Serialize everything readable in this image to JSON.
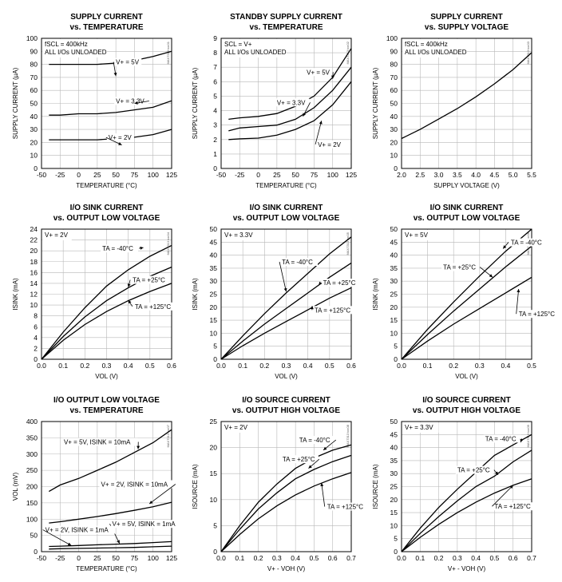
{
  "chart_data": [
    {
      "type": "line",
      "title": "SUPPLY CURRENT",
      "subtitle": "vs. TEMPERATURE",
      "xlabel": "TEMPERATURE (°C)",
      "ylabel": "SUPPLY CURRENT (µA)",
      "xlim": [
        -50,
        125
      ],
      "ylim": [
        0,
        100
      ],
      "xticks": [
        -50,
        -25,
        0,
        25,
        50,
        75,
        100,
        125
      ],
      "yticks": [
        0,
        10,
        20,
        30,
        40,
        50,
        60,
        70,
        80,
        90,
        100
      ],
      "grid": true,
      "notes": [
        "fSCL = 400kHz",
        "ALL I/Os UNLOADED"
      ],
      "mark": "MAX7313 toc01",
      "series": [
        {
          "name": "V+ = 5V",
          "x": [
            -40,
            -25,
            0,
            25,
            50,
            75,
            100,
            125
          ],
          "y": [
            80,
            80,
            80,
            80,
            81,
            83,
            86,
            90
          ]
        },
        {
          "name": "V+ = 3.3V",
          "x": [
            -40,
            -25,
            0,
            25,
            50,
            75,
            100,
            125
          ],
          "y": [
            41,
            41,
            42,
            42,
            43,
            45,
            47,
            52
          ]
        },
        {
          "name": "V+ = 2V",
          "x": [
            -40,
            -25,
            0,
            25,
            50,
            75,
            100,
            125
          ],
          "y": [
            22,
            22,
            22,
            22,
            23,
            24,
            26,
            30
          ]
        }
      ],
      "annotations": [
        {
          "text": "V+ = 5V",
          "x": 50,
          "y": 71,
          "tx": 50,
          "ty": 80
        },
        {
          "text": "V+ = 3.3V",
          "x": 75,
          "y": 50,
          "tx": 50,
          "ty": 50
        },
        {
          "text": "V+ = 2V",
          "x": 58,
          "y": 18,
          "tx": 40,
          "ty": 22
        }
      ]
    },
    {
      "type": "line",
      "title": "STANDBY SUPPLY CURRENT",
      "subtitle": "vs. TEMPERATURE",
      "xlabel": "TEMPERATURE (°C)",
      "ylabel": "SUPPLY CURRENT (µA)",
      "xlim": [
        -50,
        125
      ],
      "ylim": [
        0,
        9
      ],
      "xticks": [
        -50,
        -25,
        0,
        25,
        50,
        75,
        100,
        125
      ],
      "yticks": [
        0,
        1,
        2,
        3,
        4,
        5,
        6,
        7,
        8,
        9
      ],
      "grid": true,
      "notes": [
        "SCL = V+",
        "ALL I/Os UNLOADED"
      ],
      "mark": "MAX7313 toc02",
      "series": [
        {
          "name": "V+ = 5V",
          "x": [
            -40,
            -25,
            0,
            25,
            50,
            75,
            100,
            125
          ],
          "y": [
            3.4,
            3.5,
            3.6,
            3.8,
            4.3,
            5.0,
            6.3,
            8.3
          ]
        },
        {
          "name": "V+ = 3.3V",
          "x": [
            -40,
            -25,
            0,
            25,
            50,
            75,
            100,
            125
          ],
          "y": [
            2.6,
            2.8,
            2.9,
            3.0,
            3.4,
            4.2,
            5.4,
            7.0
          ]
        },
        {
          "name": "V+ = 2V",
          "x": [
            -40,
            -25,
            0,
            25,
            50,
            75,
            100,
            125
          ],
          "y": [
            2.0,
            2.05,
            2.1,
            2.3,
            2.7,
            3.3,
            4.4,
            6.0
          ]
        }
      ],
      "annotations": [
        {
          "text": "V+ = 5V",
          "x": 100,
          "y": 6.2,
          "tx": 65,
          "ty": 6.5
        },
        {
          "text": "V+ = 3.3V",
          "x": 60,
          "y": 3.6,
          "tx": 25,
          "ty": 4.4
        },
        {
          "text": "V+ = 2V",
          "x": 85,
          "y": 3.3,
          "tx": 80,
          "ty": 1.5
        }
      ]
    },
    {
      "type": "line",
      "title": "SUPPLY CURRENT",
      "subtitle": "vs. SUPPLY VOLTAGE",
      "xlabel": "SUPPLY VOLTAGE (V)",
      "ylabel": "SUPPLY CURRENT (µA)",
      "xlim": [
        2.0,
        5.5
      ],
      "ylim": [
        0,
        100
      ],
      "xticks": [
        2.0,
        2.5,
        3.0,
        3.5,
        4.0,
        4.5,
        5.0,
        5.5
      ],
      "yticks": [
        0,
        10,
        20,
        30,
        40,
        50,
        60,
        70,
        80,
        90,
        100
      ],
      "grid": true,
      "notes": [
        "fSCL = 400kHz",
        "ALL I/Os UNLOADED"
      ],
      "mark": "MAX7313 toc03",
      "series": [
        {
          "name": "",
          "x": [
            2.0,
            2.5,
            3.0,
            3.5,
            4.0,
            4.5,
            5.0,
            5.5
          ],
          "y": [
            23,
            30,
            38,
            46,
            55,
            65,
            76,
            89
          ]
        }
      ],
      "annotations": []
    },
    {
      "type": "line",
      "title": "I/O SINK CURRENT",
      "subtitle": "vs. OUTPUT LOW VOLTAGE",
      "xlabel": "VOL (V)",
      "ylabel": "ISINK (mA)",
      "xlim": [
        0,
        0.6
      ],
      "ylim": [
        0,
        24
      ],
      "xticks": [
        0,
        0.1,
        0.2,
        0.3,
        0.4,
        0.5,
        0.6
      ],
      "yticks": [
        0,
        2,
        4,
        6,
        8,
        10,
        12,
        14,
        16,
        18,
        20,
        22,
        24
      ],
      "grid": true,
      "notes": [
        "V+ = 2V"
      ],
      "mark": "MAX7313 toc04",
      "series": [
        {
          "name": "TA = -40°C",
          "x": [
            0,
            0.1,
            0.2,
            0.3,
            0.4,
            0.5,
            0.6
          ],
          "y": [
            0,
            5,
            9.5,
            13.5,
            16.5,
            19.0,
            21.0
          ]
        },
        {
          "name": "TA = +25°C",
          "x": [
            0,
            0.1,
            0.2,
            0.3,
            0.4,
            0.5,
            0.6
          ],
          "y": [
            0,
            4.2,
            7.8,
            10.8,
            13.2,
            15.3,
            17.0
          ]
        },
        {
          "name": "TA = +125°C",
          "x": [
            0,
            0.1,
            0.2,
            0.3,
            0.4,
            0.5,
            0.6
          ],
          "y": [
            0,
            3.5,
            6.4,
            8.8,
            10.8,
            12.5,
            14.0
          ]
        }
      ],
      "annotations": [
        {
          "text": "TA = -40°C",
          "x": 0.47,
          "y": 20.6,
          "tx": 0.28,
          "ty": 20.0
        },
        {
          "text": "TA = +25°C",
          "x": 0.4,
          "y": 13.3,
          "tx": 0.42,
          "ty": 14.2
        },
        {
          "text": "TA = +125°C",
          "x": 0.4,
          "y": 10.9,
          "tx": 0.43,
          "ty": 9.3
        }
      ]
    },
    {
      "type": "line",
      "title": "I/O SINK CURRENT",
      "subtitle": "vs. OUTPUT LOW VOLTAGE",
      "xlabel": "VOL (V)",
      "ylabel": "ISINK (mA)",
      "xlim": [
        0,
        0.6
      ],
      "ylim": [
        0,
        50
      ],
      "xticks": [
        0,
        0.1,
        0.2,
        0.3,
        0.4,
        0.5,
        0.6
      ],
      "yticks": [
        0,
        5,
        10,
        15,
        20,
        25,
        30,
        35,
        40,
        45,
        50
      ],
      "grid": true,
      "notes": [
        "V+ = 3.3V"
      ],
      "mark": "MAX7313 toc05",
      "series": [
        {
          "name": "TA = -40°C",
          "x": [
            0,
            0.1,
            0.2,
            0.3,
            0.4,
            0.5,
            0.6
          ],
          "y": [
            0,
            9,
            17.5,
            25.5,
            33,
            40.5,
            47
          ]
        },
        {
          "name": "TA = +25°C",
          "x": [
            0,
            0.1,
            0.2,
            0.3,
            0.4,
            0.5,
            0.6
          ],
          "y": [
            0,
            7,
            13.5,
            19.5,
            25.5,
            31.5,
            37
          ]
        },
        {
          "name": "TA = +125°C",
          "x": [
            0,
            0.1,
            0.2,
            0.3,
            0.4,
            0.5,
            0.6
          ],
          "y": [
            0,
            5.2,
            10,
            14.5,
            19,
            23.5,
            27.5
          ]
        }
      ],
      "annotations": [
        {
          "text": "TA = -40°C",
          "x": 0.3,
          "y": 26,
          "tx": 0.28,
          "ty": 36.5
        },
        {
          "text": "TA = +25°C",
          "x": 0.45,
          "y": 28.5,
          "tx": 0.47,
          "ty": 28.5
        },
        {
          "text": "TA = +125°C",
          "x": 0.42,
          "y": 20.5,
          "tx": 0.43,
          "ty": 18.0
        }
      ]
    },
    {
      "type": "line",
      "title": "I/O SINK CURRENT",
      "subtitle": "vs. OUTPUT LOW VOLTAGE",
      "xlabel": "VOL (V)",
      "ylabel": "ISINK (mA)",
      "xlim": [
        0,
        0.5
      ],
      "ylim": [
        0,
        50
      ],
      "xticks": [
        0,
        0.1,
        0.2,
        0.3,
        0.4,
        0.5
      ],
      "yticks": [
        0,
        5,
        10,
        15,
        20,
        25,
        30,
        35,
        40,
        45,
        50
      ],
      "grid": true,
      "notes": [
        "V+ = 5V"
      ],
      "mark": "MAX7313 toc06",
      "series": [
        {
          "name": "TA = -40°C",
          "x": [
            0,
            0.1,
            0.2,
            0.3,
            0.4,
            0.5
          ],
          "y": [
            0,
            11.5,
            22,
            32,
            41.5,
            50
          ]
        },
        {
          "name": "TA = +25°C",
          "x": [
            0,
            0.1,
            0.2,
            0.3,
            0.4,
            0.5
          ],
          "y": [
            0,
            9.5,
            18.5,
            27,
            35.5,
            43.5
          ]
        },
        {
          "name": "TA = +125°C",
          "x": [
            0,
            0.1,
            0.2,
            0.3,
            0.4,
            0.5
          ],
          "y": [
            0,
            7,
            13.5,
            19.5,
            25.5,
            31.5
          ]
        }
      ],
      "annotations": [
        {
          "text": "TA = -40°C",
          "x": 0.39,
          "y": 42.5,
          "tx": 0.42,
          "ty": 44.0
        },
        {
          "text": "TA = +25°C",
          "x": 0.35,
          "y": 31.5,
          "tx": 0.16,
          "ty": 34.5
        },
        {
          "text": "TA = +125°C",
          "x": 0.45,
          "y": 27,
          "tx": 0.45,
          "ty": 16.5
        }
      ]
    },
    {
      "type": "line",
      "title": "I/O OUTPUT LOW VOLTAGE",
      "subtitle": "vs. TEMPERATURE",
      "xlabel": "TEMPERATURE (°C)",
      "ylabel": "VOL (mV)",
      "xlim": [
        -50,
        125
      ],
      "ylim": [
        0,
        400
      ],
      "xticks": [
        -50,
        -25,
        0,
        25,
        50,
        75,
        100,
        125
      ],
      "yticks": [
        0,
        50,
        100,
        150,
        200,
        250,
        300,
        350,
        400
      ],
      "grid": true,
      "notes": [],
      "mark": "MAX7313 toc07",
      "series": [
        {
          "name": "V+ = 5V, ISINK = 10mA",
          "x": [
            -40,
            -25,
            0,
            25,
            50,
            75,
            100,
            125
          ],
          "y": [
            185,
            205,
            225,
            250,
            275,
            305,
            335,
            375
          ]
        },
        {
          "name": "V+ = 2V, ISINK = 10mA",
          "x": [
            -40,
            -25,
            0,
            25,
            50,
            75,
            100,
            125
          ],
          "y": [
            88,
            92,
            100,
            108,
            117,
            127,
            138,
            152
          ]
        },
        {
          "name": "V+ = 5V, ISINK = 1mA",
          "x": [
            -40,
            -25,
            0,
            25,
            50,
            75,
            100,
            125
          ],
          "y": [
            16,
            17,
            19,
            21,
            23,
            25,
            28,
            31
          ]
        },
        {
          "name": "V+ = 2V, ISINK = 1mA",
          "x": [
            -40,
            -25,
            0,
            25,
            50,
            75,
            100,
            125
          ],
          "y": [
            8,
            9,
            10,
            11,
            12,
            13,
            15,
            17
          ]
        }
      ],
      "annotations": [
        {
          "text": "V+ = 5V, ISINK = 10mA",
          "x": 80,
          "y": 315,
          "tx": -20,
          "ty": 330
        },
        {
          "text": "V+ = 2V, ISINK = 10mA",
          "x": 95,
          "y": 147,
          "tx": 30,
          "ty": 200
        },
        {
          "text": "V+ = 5V, ISINK = 1mA",
          "x": 55,
          "y": 25,
          "tx": 45,
          "ty": 78
        },
        {
          "text": "V+ = 2V, ISINK = 1mA",
          "x": -10,
          "y": 19,
          "tx": -45,
          "ty": 60
        }
      ]
    },
    {
      "type": "line",
      "title": "I/O SOURCE CURRENT",
      "subtitle": "vs. OUTPUT HIGH VOLTAGE",
      "xlabel": "V+ - VOH (V)",
      "ylabel": "ISOURCE (mA)",
      "xlim": [
        0,
        0.7
      ],
      "ylim": [
        0,
        25
      ],
      "xticks": [
        0,
        0.1,
        0.2,
        0.3,
        0.4,
        0.5,
        0.6,
        0.7
      ],
      "yticks": [
        0,
        5,
        10,
        15,
        20,
        25
      ],
      "grid": true,
      "notes": [
        "V+ = 2V"
      ],
      "mark": "MAX7313 toc08",
      "series": [
        {
          "name": "TA = -40°C",
          "x": [
            0,
            0.1,
            0.2,
            0.3,
            0.4,
            0.5,
            0.6,
            0.7
          ],
          "y": [
            0,
            5,
            9.5,
            13,
            16,
            18,
            19.5,
            20.5
          ]
        },
        {
          "name": "TA = +25°C",
          "x": [
            0,
            0.1,
            0.2,
            0.3,
            0.4,
            0.5,
            0.6,
            0.7
          ],
          "y": [
            0,
            4.3,
            8.2,
            11.3,
            14,
            15.8,
            17.3,
            18.5
          ]
        },
        {
          "name": "TA = +125°C",
          "x": [
            0,
            0.1,
            0.2,
            0.3,
            0.4,
            0.5,
            0.6,
            0.7
          ],
          "y": [
            0,
            3.3,
            6.3,
            8.8,
            10.9,
            12.6,
            14,
            15.2
          ]
        }
      ],
      "annotations": [
        {
          "text": "TA = -40°C",
          "x": 0.55,
          "y": 19.5,
          "tx": 0.42,
          "ty": 21.0
        },
        {
          "text": "TA = +25°C",
          "x": 0.47,
          "y": 16.0,
          "tx": 0.33,
          "ty": 17.3
        },
        {
          "text": "TA = +125°C",
          "x": 0.54,
          "y": 13.2,
          "tx": 0.57,
          "ty": 8.2
        }
      ]
    },
    {
      "type": "line",
      "title": "I/O SOURCE CURRENT",
      "subtitle": "vs. OUTPUT HIGH VOLTAGE",
      "xlabel": "V+ - VOH (V)",
      "ylabel": "ISOURCE (mA)",
      "xlim": [
        0,
        0.7
      ],
      "ylim": [
        0,
        50
      ],
      "xticks": [
        0,
        0.1,
        0.2,
        0.3,
        0.4,
        0.5,
        0.6,
        0.7
      ],
      "yticks": [
        0,
        5,
        10,
        15,
        20,
        25,
        30,
        35,
        40,
        45,
        50
      ],
      "grid": true,
      "notes": [
        "V+ = 3.3V"
      ],
      "mark": "MAX7313 toc09",
      "series": [
        {
          "name": "TA = -40°C",
          "x": [
            0,
            0.1,
            0.2,
            0.3,
            0.4,
            0.5,
            0.6,
            0.7
          ],
          "y": [
            0,
            9,
            17,
            24,
            30.5,
            37,
            41,
            45
          ]
        },
        {
          "name": "TA = +25°C",
          "x": [
            0,
            0.1,
            0.2,
            0.3,
            0.4,
            0.5,
            0.6,
            0.7
          ],
          "y": [
            0,
            7,
            13.5,
            19.5,
            25,
            29,
            34.5,
            39
          ]
        },
        {
          "name": "TA = +125°C",
          "x": [
            0,
            0.1,
            0.2,
            0.3,
            0.4,
            0.5,
            0.6,
            0.7
          ],
          "y": [
            0,
            5.5,
            10.5,
            15,
            19,
            22.5,
            25.5,
            28
          ]
        }
      ],
      "annotations": [
        {
          "text": "TA = -40°C",
          "x": 0.64,
          "y": 42,
          "tx": 0.45,
          "ty": 42.5
        },
        {
          "text": "TA = +25°C",
          "x": 0.52,
          "y": 29.5,
          "tx": 0.3,
          "ty": 30.5
        },
        {
          "text": "TA = +125°C",
          "x": 0.6,
          "y": 25.5,
          "tx": 0.5,
          "ty": 16.5
        }
      ]
    }
  ]
}
